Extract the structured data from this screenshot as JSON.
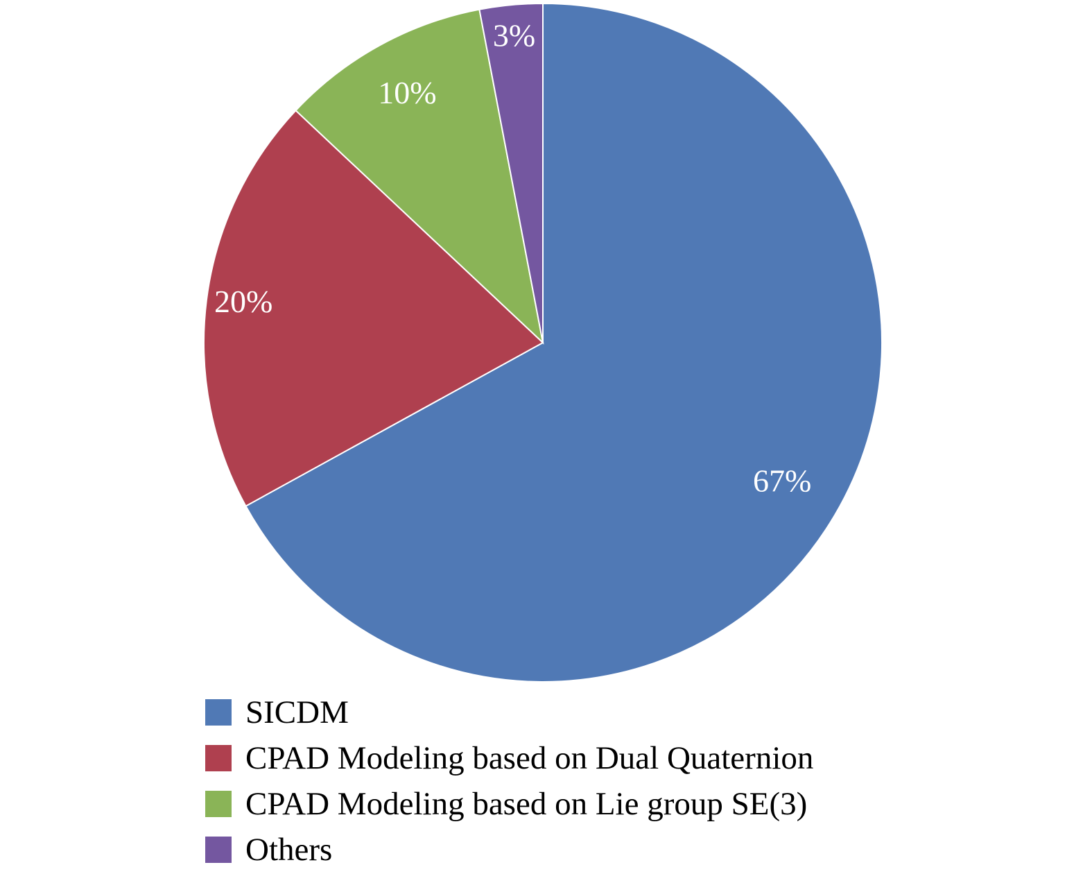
{
  "chart_data": {
    "type": "pie",
    "title": "",
    "start": "12 o'clock, clockwise",
    "legend_position": "bottom",
    "slices": [
      {
        "name": "SICDM",
        "value": 67,
        "label": "67%",
        "color": "#5079B5"
      },
      {
        "name": "CPAD Modeling based on Dual Quaternion",
        "value": 20,
        "label": "20%",
        "color": "#AF404F"
      },
      {
        "name": "CPAD Modeling based on Lie group SE(3)",
        "value": 10,
        "label": "10%",
        "color": "#8AB457"
      },
      {
        "name": "Others",
        "value": 3,
        "label": "3%",
        "color": "#7457A0"
      }
    ]
  }
}
